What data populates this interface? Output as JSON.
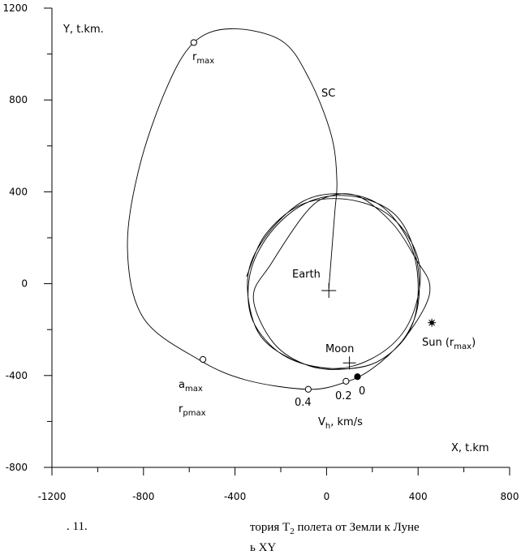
{
  "chart_data": {
    "type": "line",
    "xlabel": "X, t.km",
    "ylabel": "Y, t.km.",
    "xlim": [
      -1200,
      800
    ],
    "ylim": [
      -800,
      1200
    ],
    "x_ticks": [
      -1200,
      -800,
      -400,
      0,
      400,
      800
    ],
    "y_ticks": [
      1200,
      800,
      400,
      0,
      -400,
      -800
    ],
    "series": [
      {
        "name": "SC",
        "points": [
          [
            10,
            -20
          ],
          [
            35,
            300
          ],
          [
            45,
            450
          ],
          [
            20,
            650
          ],
          [
            -80,
            900
          ],
          [
            -200,
            1060
          ],
          [
            -420,
            1110
          ],
          [
            -580,
            1050
          ],
          [
            -700,
            850
          ],
          [
            -820,
            500
          ],
          [
            -870,
            150
          ],
          [
            -800,
            -150
          ],
          [
            -560,
            -330
          ],
          [
            -350,
            -420
          ],
          [
            -80,
            -460
          ],
          [
            80,
            -430
          ],
          [
            200,
            -370
          ],
          [
            330,
            -250
          ],
          [
            430,
            -100
          ],
          [
            450,
            0
          ],
          [
            395,
            100
          ],
          [
            290,
            260
          ],
          [
            140,
            380
          ],
          [
            10,
            380
          ],
          [
            -90,
            310
          ],
          [
            -240,
            90
          ],
          [
            -320,
            -60
          ],
          [
            -230,
            -260
          ],
          [
            -70,
            -360
          ],
          [
            100,
            -370
          ],
          [
            240,
            -330
          ],
          [
            360,
            -210
          ],
          [
            400,
            -40
          ],
          [
            370,
            160
          ],
          [
            250,
            330
          ],
          [
            90,
            390
          ],
          [
            -100,
            360
          ],
          [
            -270,
            200
          ],
          [
            -345,
            20
          ],
          [
            -300,
            -210
          ],
          [
            -150,
            -330
          ],
          [
            30,
            -370
          ],
          [
            200,
            -350
          ],
          [
            330,
            -250
          ],
          [
            400,
            -90
          ],
          [
            390,
            120
          ],
          [
            300,
            300
          ],
          [
            120,
            380
          ],
          [
            -70,
            360
          ],
          [
            -230,
            240
          ],
          [
            -330,
            60
          ],
          [
            -330,
            -140
          ],
          [
            -220,
            -290
          ],
          [
            -60,
            -360
          ],
          [
            110,
            -360
          ],
          [
            270,
            -280
          ],
          [
            370,
            -150
          ],
          [
            410,
            40
          ],
          [
            360,
            200
          ],
          [
            240,
            320
          ],
          [
            60,
            370
          ],
          [
            -120,
            340
          ],
          [
            -270,
            210
          ],
          [
            -350,
            30
          ]
        ]
      }
    ],
    "markers": [
      {
        "label": "r",
        "sub": "max",
        "x": -580,
        "y": 1050,
        "kind": "open"
      },
      {
        "label": "a",
        "sub": "max",
        "x": -540,
        "y": -330,
        "kind": "open"
      },
      {
        "label": "0.4",
        "x": -80,
        "y": -460,
        "kind": "open"
      },
      {
        "label": "0.2",
        "x": 85,
        "y": -425,
        "kind": "open"
      },
      {
        "label": "0",
        "x": 135,
        "y": -405,
        "kind": "filled"
      },
      {
        "label": "Sun",
        "x": 460,
        "y": -170,
        "kind": "star"
      }
    ],
    "annotations": {
      "sc": "SC",
      "earth": "Earth",
      "moon": "Moon",
      "sun": "Sun (r",
      "sun_sub": "max",
      "sun_close": ")",
      "rmax": "r",
      "rmax_sub": "max",
      "amax": "a",
      "amax_sub": "max",
      "rpmax": "r",
      "rpmax_sub": "pmax",
      "v04": "0.4",
      "v02": "0.2",
      "v0": "0",
      "vh": "V",
      "vh_sub": "h",
      "vh_rest": ", km/s"
    }
  },
  "caption": {
    "line1_left": ". 11.",
    "line1_right": "тория Т",
    "line1_sub": "2",
    "line1_rest": " полета от Земли к Луне",
    "line2": "ь XY"
  }
}
